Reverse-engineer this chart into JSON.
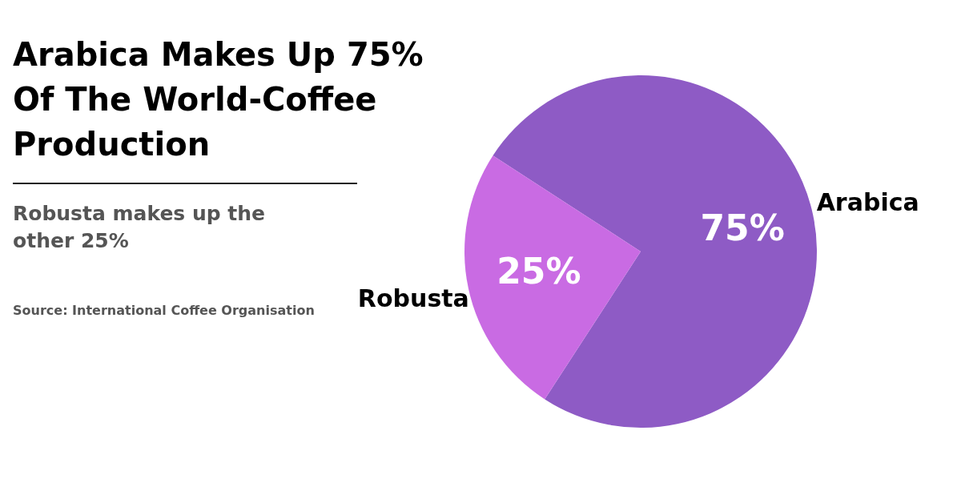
{
  "chart_data": {
    "type": "pie",
    "title": "Arabica Makes Up 75% Of The World-Coffee Production",
    "subtitle": "Robusta makes up the other 25%",
    "annotations": [
      "Source: International Coffee Organisation"
    ],
    "categories": [
      "Arabica",
      "Robusta"
    ],
    "values": [
      75,
      25
    ],
    "colors": [
      "#8e5bc5",
      "#c96be3"
    ],
    "value_labels": [
      "75%",
      "25%"
    ]
  }
}
